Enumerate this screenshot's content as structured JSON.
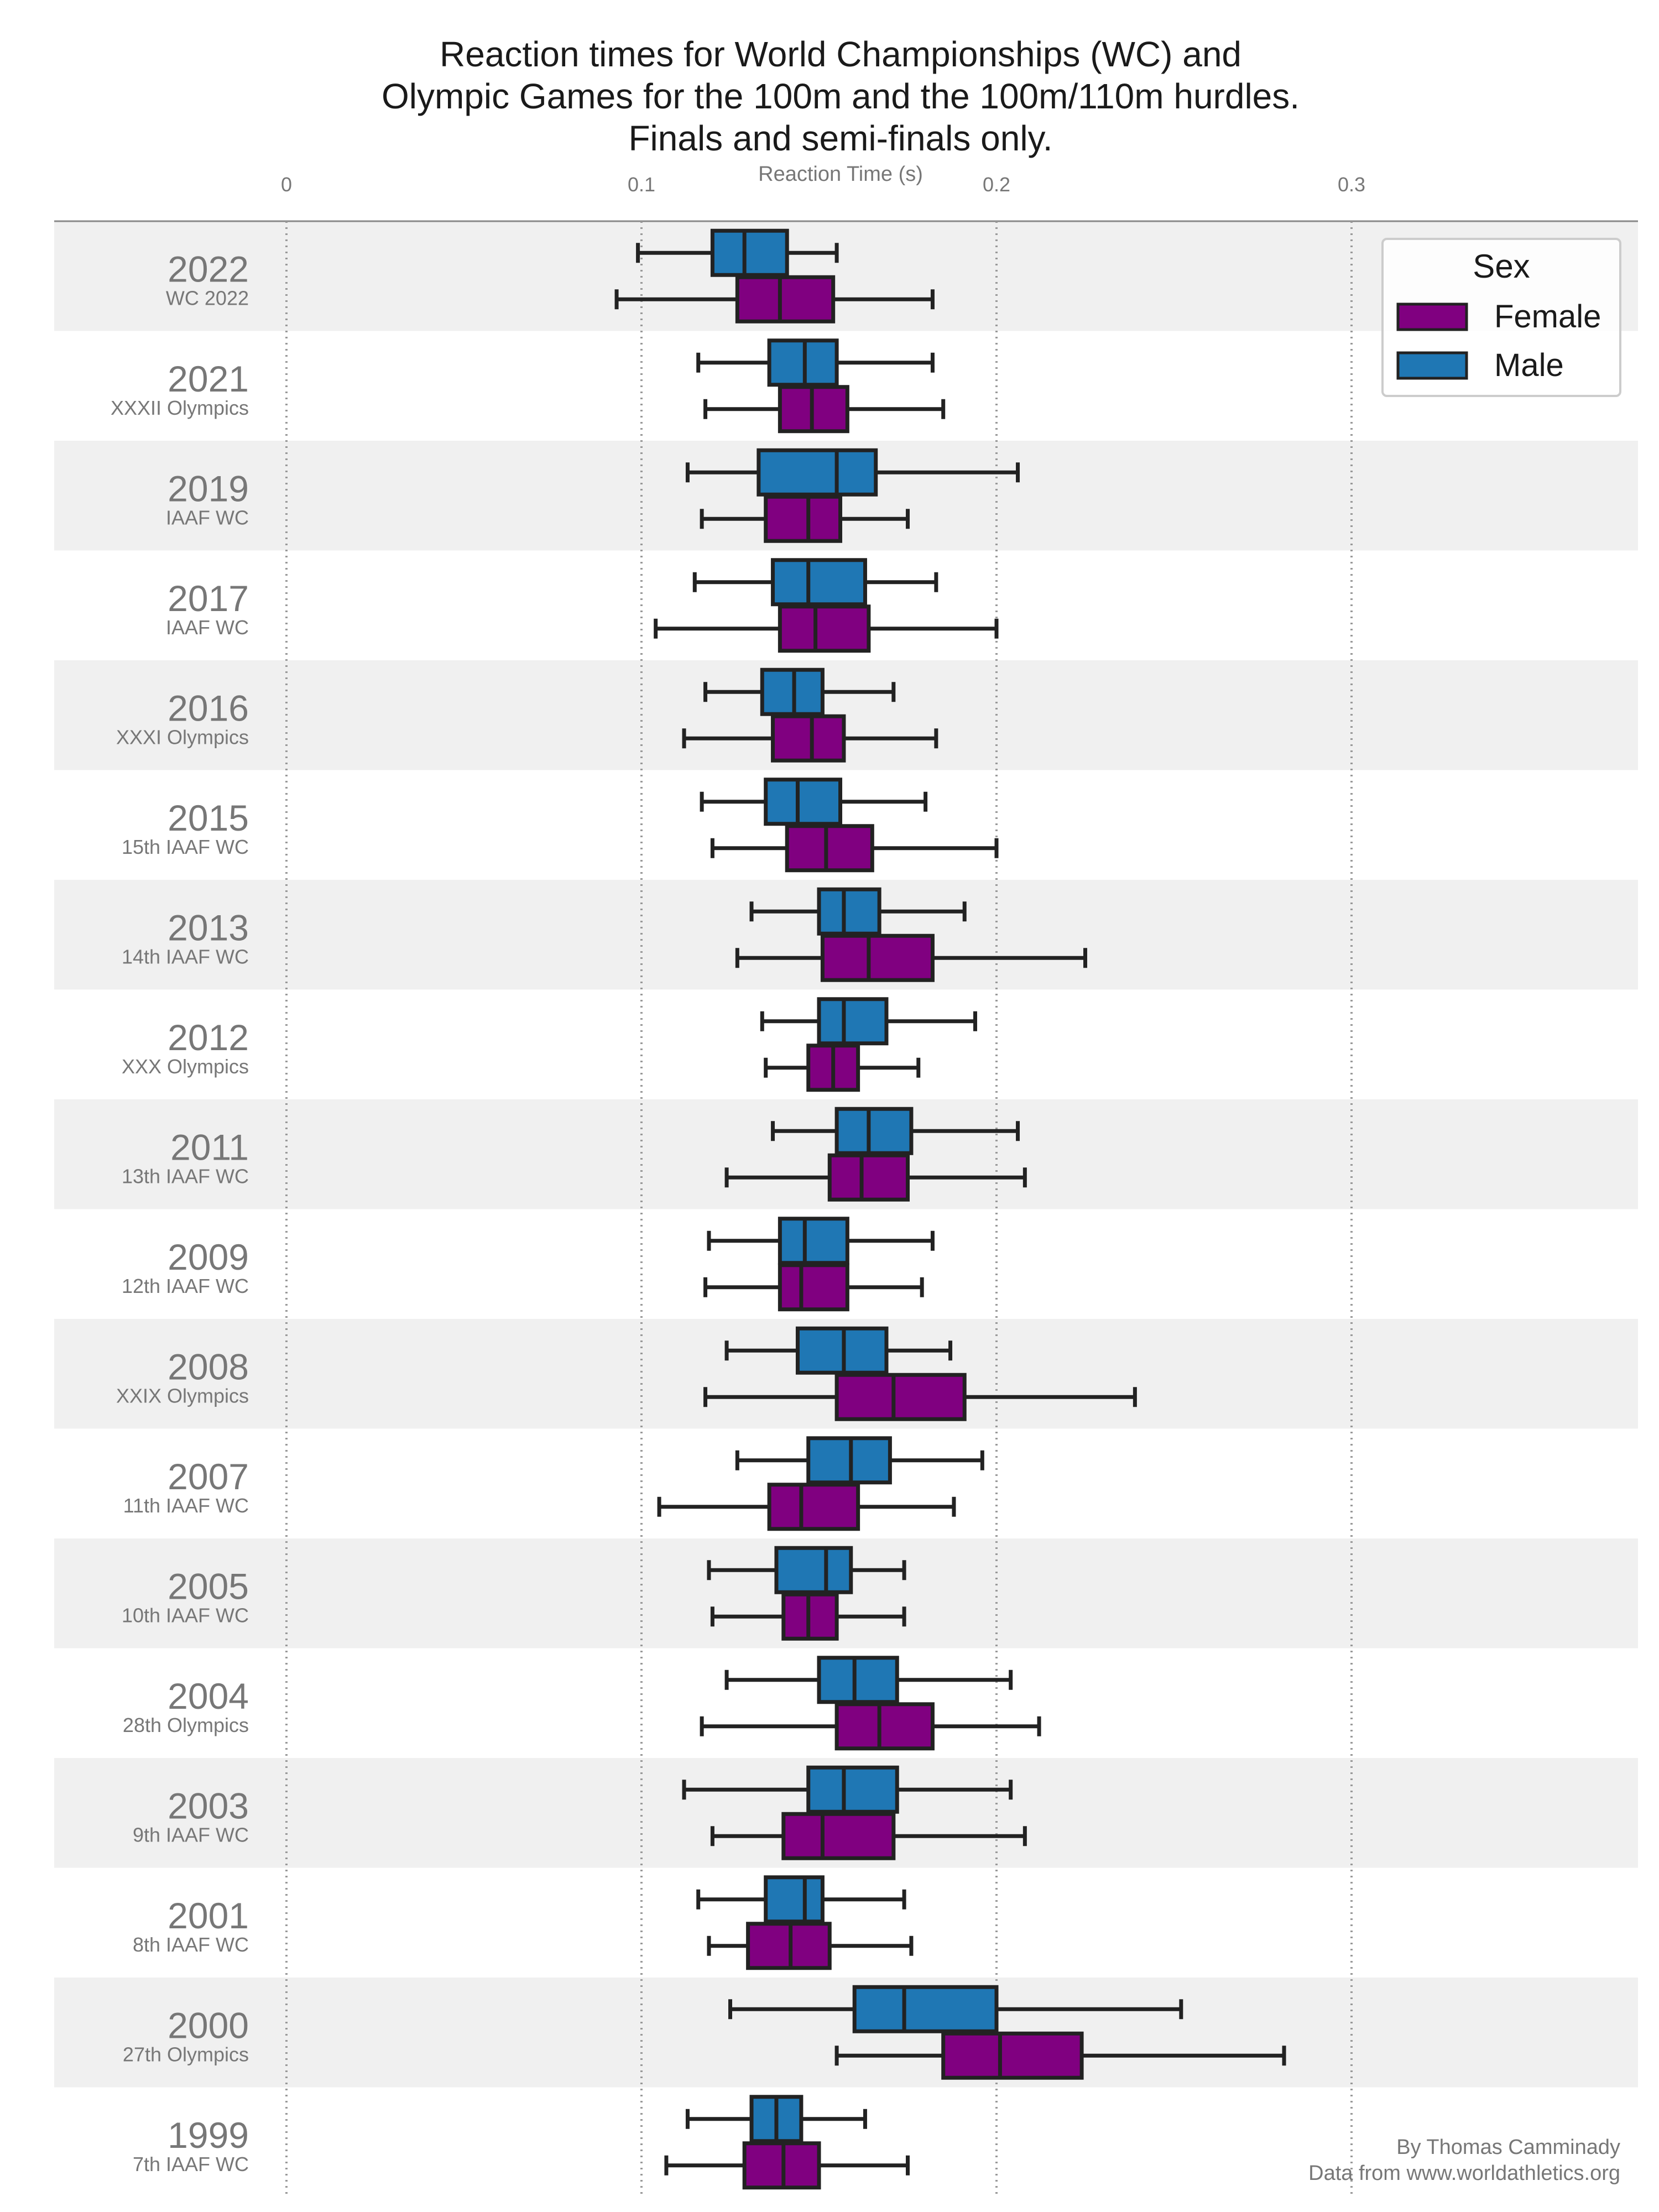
{
  "chart_data": {
    "type": "boxplot",
    "title": [
      "Reaction times for World Championships (WC) and",
      "Olympic Games for the 100m and the 100m/110m hurdles.",
      "Finals and semi-finals only."
    ],
    "xlabel": "Reaction Time (s)",
    "ylabel": "",
    "xlim": [
      -0.065,
      0.38
    ],
    "x_ticks": [
      0,
      0.1,
      0.2,
      0.3
    ],
    "x_tick_labels": [
      "0",
      "0.1",
      "0.2",
      "0.3"
    ],
    "x_axis_position": "top",
    "grid": "vertical dotted lines at ticks",
    "legend": {
      "title": "Sex",
      "placement": "top-right",
      "entries": [
        {
          "label": "Female",
          "color": "#800080"
        },
        {
          "label": "Male",
          "color": "#1f77b4"
        }
      ]
    },
    "colors": {
      "Female": "#800080",
      "Male": "#1f77b4",
      "band": "#f0f0f0",
      "edge": "#222222"
    },
    "fields": [
      "whisker_low",
      "q1",
      "median",
      "q3",
      "whisker_high"
    ],
    "categories": [
      {
        "year": "2022",
        "event": "WC 2022",
        "Male": [
          0.099,
          0.12,
          0.129,
          0.141,
          0.155
        ],
        "Female": [
          0.093,
          0.127,
          0.139,
          0.154,
          0.182
        ]
      },
      {
        "year": "2021",
        "event": "XXXII Olympics",
        "Male": [
          0.116,
          0.136,
          0.146,
          0.155,
          0.182
        ],
        "Female": [
          0.118,
          0.139,
          0.148,
          0.158,
          0.185
        ]
      },
      {
        "year": "2019",
        "event": "IAAF WC",
        "Male": [
          0.113,
          0.133,
          0.155,
          0.166,
          0.206
        ],
        "Female": [
          0.117,
          0.135,
          0.147,
          0.156,
          0.175
        ]
      },
      {
        "year": "2017",
        "event": "IAAF WC",
        "Male": [
          0.115,
          0.137,
          0.147,
          0.163,
          0.183
        ],
        "Female": [
          0.104,
          0.139,
          0.149,
          0.164,
          0.2
        ]
      },
      {
        "year": "2016",
        "event": "XXXI Olympics",
        "Male": [
          0.118,
          0.134,
          0.143,
          0.151,
          0.171
        ],
        "Female": [
          0.112,
          0.137,
          0.148,
          0.157,
          0.183
        ]
      },
      {
        "year": "2015",
        "event": "15th IAAF WC",
        "Male": [
          0.117,
          0.135,
          0.144,
          0.156,
          0.18
        ],
        "Female": [
          0.12,
          0.141,
          0.152,
          0.165,
          0.2
        ]
      },
      {
        "year": "2013",
        "event": "14th IAAF WC",
        "Male": [
          0.131,
          0.15,
          0.157,
          0.167,
          0.191
        ],
        "Female": [
          0.127,
          0.151,
          0.164,
          0.182,
          0.225
        ]
      },
      {
        "year": "2012",
        "event": "XXX Olympics",
        "Male": [
          0.134,
          0.15,
          0.157,
          0.169,
          0.194
        ],
        "Female": [
          0.135,
          0.147,
          0.154,
          0.161,
          0.178
        ]
      },
      {
        "year": "2011",
        "event": "13th IAAF WC",
        "Male": [
          0.137,
          0.155,
          0.164,
          0.176,
          0.206
        ],
        "Female": [
          0.124,
          0.153,
          0.162,
          0.175,
          0.208
        ]
      },
      {
        "year": "2009",
        "event": "12th IAAF WC",
        "Male": [
          0.119,
          0.139,
          0.146,
          0.158,
          0.182
        ],
        "Female": [
          0.118,
          0.139,
          0.145,
          0.158,
          0.179
        ]
      },
      {
        "year": "2008",
        "event": "XXIX Olympics",
        "Male": [
          0.124,
          0.144,
          0.157,
          0.169,
          0.187
        ],
        "Female": [
          0.118,
          0.155,
          0.171,
          0.191,
          0.239
        ]
      },
      {
        "year": "2007",
        "event": "11th IAAF WC",
        "Male": [
          0.127,
          0.147,
          0.159,
          0.17,
          0.196
        ],
        "Female": [
          0.105,
          0.136,
          0.145,
          0.161,
          0.188
        ]
      },
      {
        "year": "2005",
        "event": "10th IAAF WC",
        "Male": [
          0.119,
          0.138,
          0.152,
          0.159,
          0.174
        ],
        "Female": [
          0.12,
          0.14,
          0.147,
          0.155,
          0.174
        ]
      },
      {
        "year": "2004",
        "event": "28th Olympics",
        "Male": [
          0.124,
          0.15,
          0.16,
          0.172,
          0.204
        ],
        "Female": [
          0.117,
          0.155,
          0.167,
          0.182,
          0.212
        ]
      },
      {
        "year": "2003",
        "event": "9th IAAF WC",
        "Male": [
          0.112,
          0.147,
          0.157,
          0.172,
          0.204
        ],
        "Female": [
          0.12,
          0.14,
          0.151,
          0.171,
          0.208
        ]
      },
      {
        "year": "2001",
        "event": "8th IAAF WC",
        "Male": [
          0.116,
          0.135,
          0.146,
          0.151,
          0.174
        ],
        "Female": [
          0.119,
          0.13,
          0.142,
          0.153,
          0.176
        ]
      },
      {
        "year": "2000",
        "event": "27th Olympics",
        "Male": [
          0.125,
          0.16,
          0.174,
          0.2,
          0.252
        ],
        "Female": [
          0.155,
          0.185,
          0.201,
          0.224,
          0.281
        ]
      },
      {
        "year": "1999",
        "event": "7th IAAF WC",
        "Male": [
          0.113,
          0.131,
          0.138,
          0.145,
          0.163
        ],
        "Female": [
          0.107,
          0.129,
          0.14,
          0.15,
          0.175
        ]
      }
    ]
  },
  "credits": {
    "author": "By Thomas Camminady",
    "source": "Data from www.worldathletics.org"
  }
}
